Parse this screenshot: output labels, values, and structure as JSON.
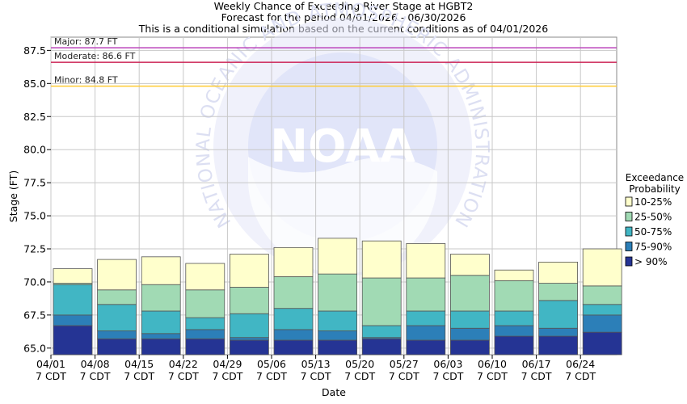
{
  "chart_data": {
    "type": "bar",
    "title_lines": [
      "Weekly Chance of Exceeding River Stage at HGBT2",
      "Forecast for the period 04/01/2026 - 06/30/2026",
      "This is a conditional simulation based on the current conditions as of 04/01/2026"
    ],
    "xlabel": "Date",
    "ylabel": "Stage (FT)",
    "ylim": [
      64.5,
      88.5
    ],
    "yticks": [
      "65.0",
      "67.5",
      "70.0",
      "72.5",
      "75.0",
      "77.5",
      "80.0",
      "82.5",
      "85.0",
      "87.5"
    ],
    "grid": true,
    "categories": [
      "04/01",
      "04/08",
      "04/15",
      "04/22",
      "04/29",
      "05/06",
      "05/13",
      "05/20",
      "05/27",
      "06/03",
      "06/10",
      "06/17",
      "06/24"
    ],
    "category_sublabel": "7 CDT",
    "legend": {
      "title_lines": [
        "Exceedance",
        "Probability"
      ],
      "placement": "right",
      "entries": [
        {
          "label": "10-25%",
          "color": "#ffffcc"
        },
        {
          "label": "25-50%",
          "color": "#a1dab4"
        },
        {
          "label": "50-75%",
          "color": "#41b6c4"
        },
        {
          "label": "75-90%",
          "color": "#2c7fb8"
        },
        {
          "label": "> 90%",
          "color": "#253494"
        }
      ]
    },
    "flood_levels": [
      {
        "label": "Major: 87.7 FT",
        "value": 87.7,
        "color": "#bb44bb"
      },
      {
        "label": "Moderate: 86.6 FT",
        "value": 86.6,
        "color": "#cc2255"
      },
      {
        "label": "Minor: 84.8 FT",
        "value": 84.8,
        "color": "#ffcc33"
      }
    ],
    "series": [
      {
        "name": "> 90%",
        "values": [
          66.7,
          65.7,
          65.7,
          65.7,
          65.6,
          65.6,
          65.6,
          65.7,
          65.6,
          65.6,
          65.9,
          65.9,
          66.2
        ]
      },
      {
        "name": "75-90%",
        "values": [
          67.5,
          66.3,
          66.1,
          66.4,
          65.8,
          66.4,
          66.3,
          65.8,
          66.7,
          66.5,
          66.7,
          66.5,
          67.5
        ]
      },
      {
        "name": "50-75%",
        "values": [
          69.8,
          68.3,
          67.8,
          67.3,
          67.6,
          68.0,
          67.8,
          66.7,
          67.8,
          67.8,
          67.8,
          68.6,
          68.3
        ]
      },
      {
        "name": "25-50%",
        "values": [
          69.9,
          69.4,
          69.8,
          69.4,
          69.6,
          70.4,
          70.6,
          70.3,
          70.3,
          70.5,
          70.1,
          69.9,
          69.7
        ]
      },
      {
        "name": "10-25%",
        "values": [
          71.0,
          71.7,
          71.9,
          71.4,
          72.1,
          72.6,
          73.3,
          73.1,
          72.9,
          72.1,
          70.9,
          71.5,
          72.5
        ]
      }
    ],
    "watermark": {
      "text": "NOAA",
      "ring_text": "NATIONAL OCEANIC AND ATMOSPHERIC ADMINISTRATION"
    }
  }
}
